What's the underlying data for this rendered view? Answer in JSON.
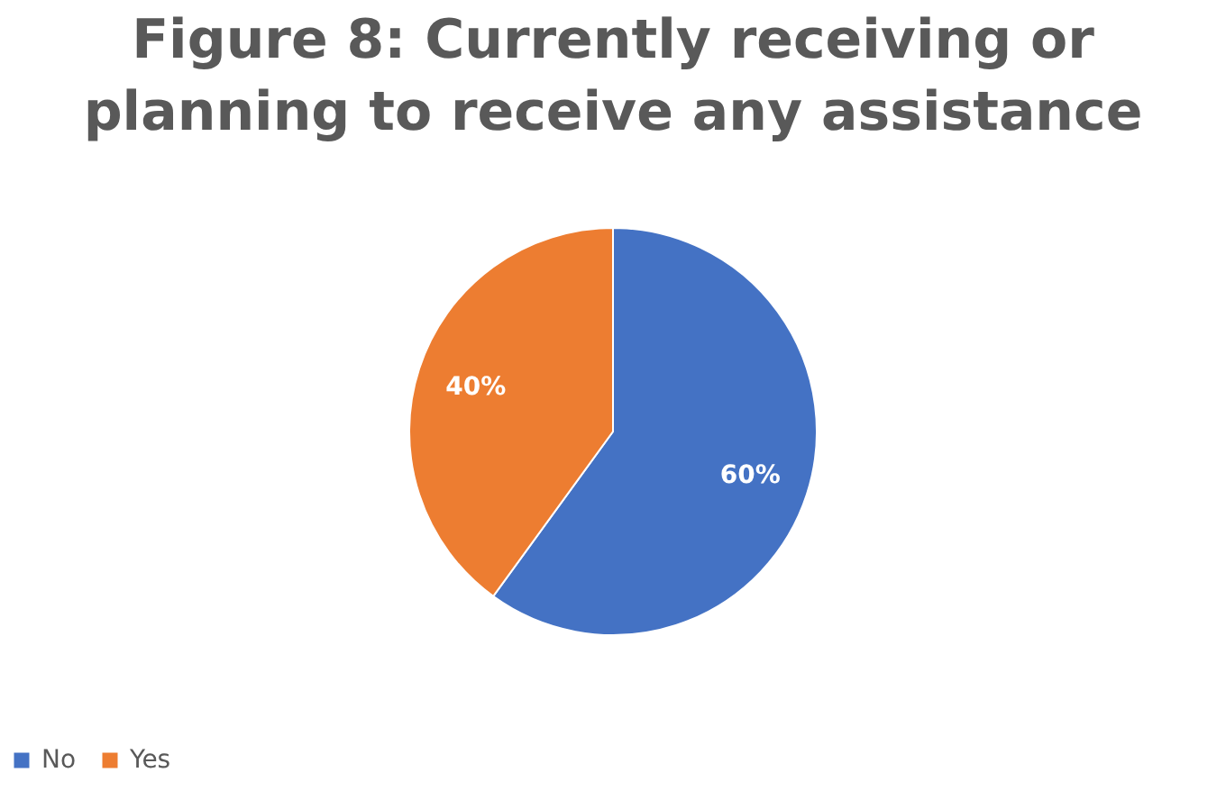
{
  "chart_data": {
    "type": "pie",
    "title": "Figure 8: Currently receiving or planning to receive any assistance",
    "categories": [
      "No",
      "Yes"
    ],
    "values": [
      60,
      40
    ],
    "colors": [
      "#4472c4",
      "#ed7d31"
    ],
    "value_labels": [
      "60%",
      "40%"
    ],
    "legend": "bottom"
  }
}
